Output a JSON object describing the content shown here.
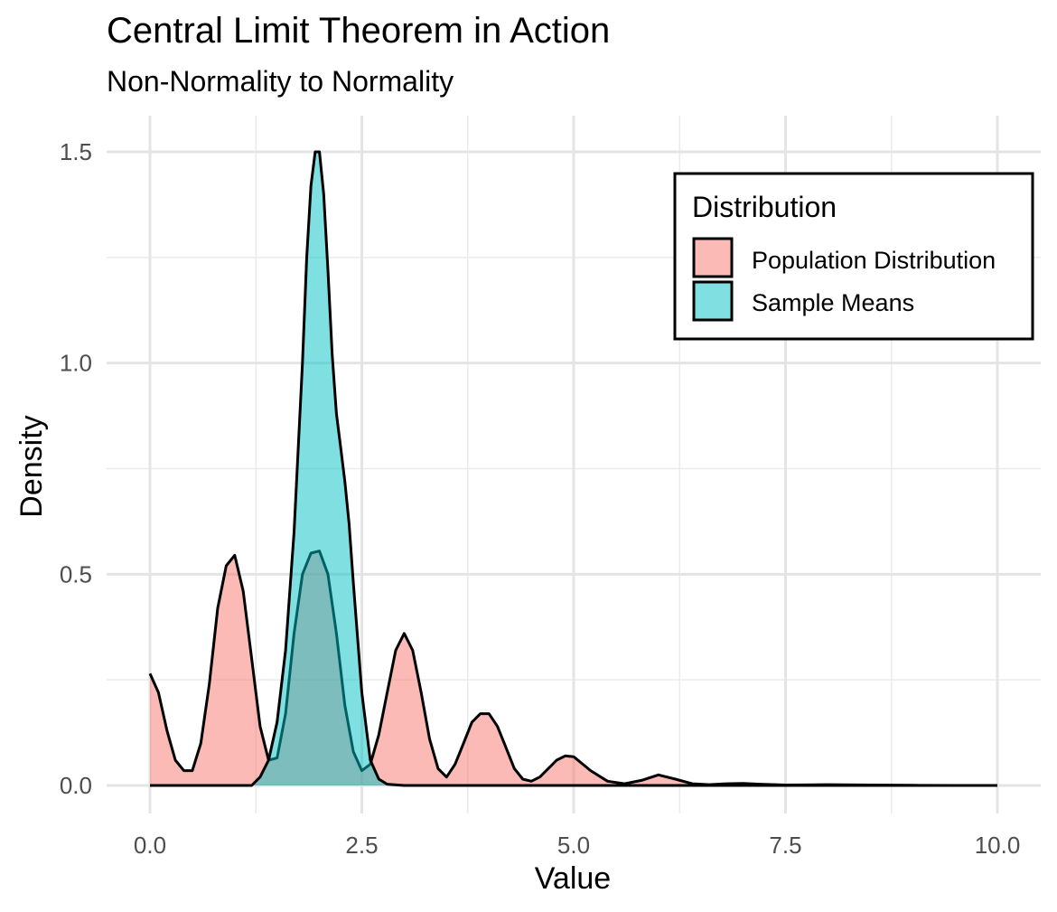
{
  "chart_data": {
    "type": "area",
    "title": "Central Limit Theorem in Action",
    "subtitle": "Non-Normality to Normality",
    "xlabel": "Value",
    "ylabel": "Density",
    "xlim": [
      0,
      10
    ],
    "ylim": [
      0,
      1.5
    ],
    "x_ticks": [
      "0.0",
      "2.5",
      "5.0",
      "7.5",
      "10.0"
    ],
    "x_tick_values": [
      0,
      2.5,
      5,
      7.5,
      10
    ],
    "y_ticks": [
      "0.0",
      "0.5",
      "1.0",
      "1.5"
    ],
    "y_tick_values": [
      0,
      0.5,
      1.0,
      1.5
    ],
    "grid": true,
    "legend": {
      "title": "Distribution",
      "placement": "top-right",
      "entries": [
        "Population Distribution",
        "Sample Means"
      ]
    },
    "series": [
      {
        "name": "Population Distribution",
        "color": "#F8766D",
        "fill_opacity": 0.5,
        "x": [
          0.0,
          0.1,
          0.2,
          0.3,
          0.4,
          0.5,
          0.6,
          0.7,
          0.8,
          0.9,
          1.0,
          1.1,
          1.2,
          1.3,
          1.4,
          1.5,
          1.6,
          1.7,
          1.8,
          1.9,
          2.0,
          2.1,
          2.2,
          2.3,
          2.4,
          2.5,
          2.6,
          2.7,
          2.8,
          2.9,
          3.0,
          3.1,
          3.2,
          3.3,
          3.4,
          3.5,
          3.6,
          3.7,
          3.8,
          3.9,
          4.0,
          4.1,
          4.2,
          4.3,
          4.4,
          4.5,
          4.6,
          4.7,
          4.8,
          4.9,
          5.0,
          5.2,
          5.4,
          5.6,
          5.8,
          6.0,
          6.2,
          6.4,
          6.6,
          6.8,
          7.0,
          7.2,
          7.5,
          8.0,
          8.5,
          9.0,
          9.5,
          10.0
        ],
        "y": [
          0.265,
          0.22,
          0.13,
          0.06,
          0.035,
          0.035,
          0.1,
          0.24,
          0.42,
          0.52,
          0.545,
          0.46,
          0.3,
          0.14,
          0.06,
          0.065,
          0.17,
          0.36,
          0.5,
          0.55,
          0.555,
          0.5,
          0.36,
          0.19,
          0.08,
          0.035,
          0.05,
          0.12,
          0.22,
          0.32,
          0.36,
          0.32,
          0.22,
          0.11,
          0.04,
          0.02,
          0.05,
          0.1,
          0.15,
          0.17,
          0.17,
          0.14,
          0.09,
          0.04,
          0.015,
          0.01,
          0.02,
          0.04,
          0.06,
          0.07,
          0.068,
          0.035,
          0.01,
          0.004,
          0.012,
          0.025,
          0.015,
          0.004,
          0.002,
          0.004,
          0.005,
          0.003,
          0.001,
          0.002,
          0.001,
          0.0005,
          0.0,
          0.0
        ]
      },
      {
        "name": "Sample Means",
        "color": "#00BFC4",
        "fill_opacity": 0.5,
        "x": [
          0.0,
          1.2,
          1.3,
          1.4,
          1.5,
          1.6,
          1.7,
          1.8,
          1.85,
          1.9,
          1.95,
          2.0,
          2.05,
          2.1,
          2.15,
          2.2,
          2.25,
          2.3,
          2.35,
          2.4,
          2.5,
          2.6,
          2.7,
          2.8,
          3.0,
          10.0
        ],
        "y": [
          0.0,
          0.0,
          0.02,
          0.06,
          0.15,
          0.32,
          0.6,
          1.0,
          1.25,
          1.42,
          1.5,
          1.5,
          1.4,
          1.22,
          1.02,
          0.88,
          0.8,
          0.72,
          0.62,
          0.48,
          0.22,
          0.06,
          0.015,
          0.003,
          0.0,
          0.0
        ]
      }
    ]
  }
}
